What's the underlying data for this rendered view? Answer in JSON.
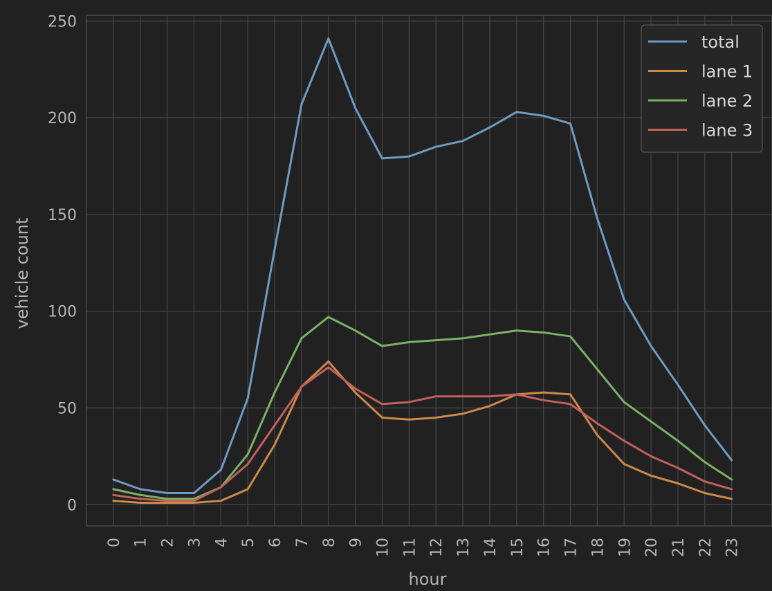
{
  "chart_data": {
    "type": "line",
    "title": "",
    "xlabel": "hour",
    "ylabel": "vehicle count",
    "x": [
      0,
      1,
      2,
      3,
      4,
      5,
      6,
      7,
      8,
      9,
      10,
      11,
      12,
      13,
      14,
      15,
      16,
      17,
      18,
      19,
      20,
      21,
      22,
      23
    ],
    "x_tick_labels": [
      "0",
      "1",
      "2",
      "3",
      "4",
      "5",
      "6",
      "7",
      "8",
      "9",
      "10",
      "11",
      "12",
      "13",
      "14",
      "15",
      "16",
      "17",
      "18",
      "19",
      "20",
      "21",
      "22",
      "23"
    ],
    "y_ticks": [
      0,
      50,
      100,
      150,
      200,
      250
    ],
    "y_tick_labels": [
      "0",
      "50",
      "100",
      "150",
      "200",
      "250"
    ],
    "xlim": [
      -1,
      24.5
    ],
    "ylim": [
      -11,
      253
    ],
    "grid": true,
    "legend_position": "top-right",
    "series": [
      {
        "name": "total",
        "color": "#6e9bc4",
        "values": [
          13,
          8,
          6,
          6,
          18,
          55,
          132,
          207,
          241,
          205,
          179,
          180,
          185,
          188,
          195,
          203,
          201,
          197,
          148,
          106,
          82,
          62,
          41,
          23
        ]
      },
      {
        "name": "lane 1",
        "color": "#cd8a48",
        "values": [
          2,
          1,
          1,
          1,
          2,
          8,
          31,
          61,
          74,
          58,
          45,
          44,
          45,
          47,
          51,
          57,
          58,
          57,
          36,
          21,
          15,
          11,
          6,
          3
        ]
      },
      {
        "name": "lane 2",
        "color": "#78b463",
        "values": [
          8,
          5,
          3,
          3,
          9,
          26,
          58,
          86,
          97,
          90,
          82,
          84,
          85,
          86,
          88,
          90,
          89,
          87,
          70,
          53,
          43,
          33,
          22,
          13
        ]
      },
      {
        "name": "lane 3",
        "color": "#c4605a",
        "values": [
          5,
          3,
          2,
          2,
          9,
          21,
          41,
          61,
          71,
          60,
          52,
          53,
          56,
          56,
          56,
          57,
          54,
          52,
          42,
          33,
          25,
          19,
          12,
          8
        ]
      }
    ]
  }
}
